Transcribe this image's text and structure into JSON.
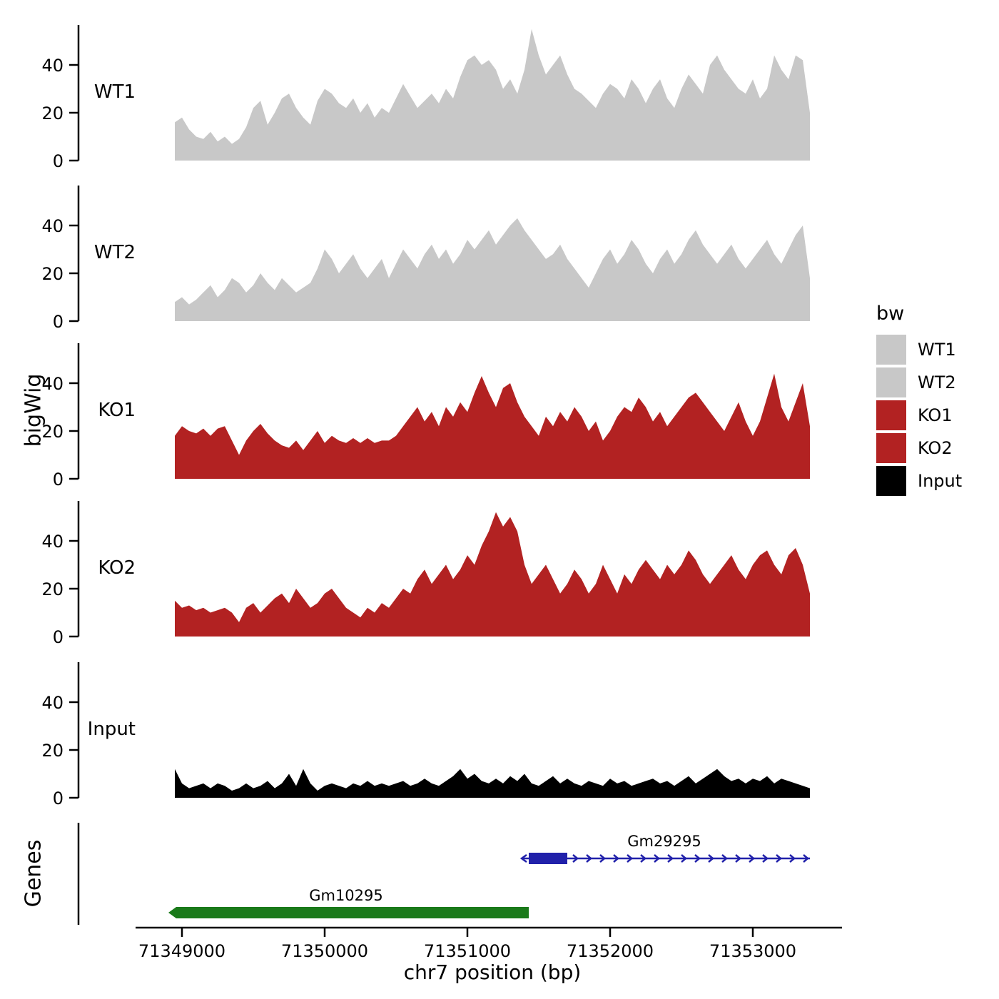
{
  "figure": {
    "y_axis_label": "bigWig",
    "genes_axis_label": "Genes",
    "x_axis_label": "chr7 position (bp)"
  },
  "legend": {
    "title": "bw",
    "items": [
      {
        "label": "WT1",
        "color": "#C8C8C8"
      },
      {
        "label": "WT2",
        "color": "#C8C8C8"
      },
      {
        "label": "KO1",
        "color": "#B22222"
      },
      {
        "label": "KO2",
        "color": "#B22222"
      },
      {
        "label": "Input",
        "color": "#000000"
      }
    ]
  },
  "chart_data": {
    "type": "area",
    "title": "",
    "xlabel": "chr7 position (bp)",
    "ylabel": "bigWig",
    "x_start": 71348950,
    "x_step": 50,
    "x_ticks": [
      71349000,
      71350000,
      71351000,
      71352000,
      71353000
    ],
    "y_ticks": [
      0,
      20,
      40
    ],
    "ylim": [
      0,
      57
    ],
    "grid": false,
    "legend_position": "right",
    "tracks": [
      {
        "name": "WT1",
        "color": "#C8C8C8",
        "values": [
          16,
          18,
          13,
          10,
          9,
          12,
          8,
          10,
          7,
          9,
          14,
          22,
          25,
          15,
          20,
          26,
          28,
          22,
          18,
          15,
          25,
          30,
          28,
          24,
          22,
          26,
          20,
          24,
          18,
          22,
          20,
          26,
          32,
          27,
          22,
          25,
          28,
          24,
          30,
          26,
          35,
          42,
          44,
          40,
          42,
          38,
          30,
          34,
          28,
          38,
          55,
          44,
          36,
          40,
          44,
          36,
          30,
          28,
          25,
          22,
          28,
          32,
          30,
          26,
          34,
          30,
          24,
          30,
          34,
          26,
          22,
          30,
          36,
          32,
          28,
          40,
          44,
          38,
          34,
          30,
          28,
          34,
          26,
          30,
          44,
          38,
          34,
          44,
          42,
          20
        ]
      },
      {
        "name": "WT2",
        "color": "#C8C8C8",
        "values": [
          8,
          10,
          7,
          9,
          12,
          15,
          10,
          13,
          18,
          16,
          12,
          15,
          20,
          16,
          13,
          18,
          15,
          12,
          14,
          16,
          22,
          30,
          26,
          20,
          24,
          28,
          22,
          18,
          22,
          26,
          18,
          24,
          30,
          26,
          22,
          28,
          32,
          26,
          30,
          24,
          28,
          34,
          30,
          34,
          38,
          32,
          36,
          40,
          43,
          38,
          34,
          30,
          26,
          28,
          32,
          26,
          22,
          18,
          14,
          20,
          26,
          30,
          24,
          28,
          34,
          30,
          24,
          20,
          26,
          30,
          24,
          28,
          34,
          38,
          32,
          28,
          24,
          28,
          32,
          26,
          22,
          26,
          30,
          34,
          28,
          24,
          30,
          36,
          40,
          18
        ]
      },
      {
        "name": "KO1",
        "color": "#B22222",
        "values": [
          18,
          22,
          20,
          19,
          21,
          18,
          21,
          22,
          16,
          10,
          16,
          20,
          23,
          19,
          16,
          14,
          13,
          16,
          12,
          16,
          20,
          15,
          18,
          16,
          15,
          17,
          15,
          17,
          15,
          16,
          16,
          18,
          22,
          26,
          30,
          24,
          28,
          22,
          30,
          26,
          32,
          28,
          36,
          43,
          36,
          30,
          38,
          40,
          32,
          26,
          22,
          18,
          26,
          22,
          28,
          24,
          30,
          26,
          20,
          24,
          16,
          20,
          26,
          30,
          28,
          34,
          30,
          24,
          28,
          22,
          26,
          30,
          34,
          36,
          32,
          28,
          24,
          20,
          26,
          32,
          24,
          18,
          24,
          34,
          44,
          30,
          24,
          32,
          40,
          22
        ]
      },
      {
        "name": "KO2",
        "color": "#B22222",
        "values": [
          15,
          12,
          13,
          11,
          12,
          10,
          11,
          12,
          10,
          6,
          12,
          14,
          10,
          13,
          16,
          18,
          14,
          20,
          16,
          12,
          14,
          18,
          20,
          16,
          12,
          10,
          8,
          12,
          10,
          14,
          12,
          16,
          20,
          18,
          24,
          28,
          22,
          26,
          30,
          24,
          28,
          34,
          30,
          38,
          44,
          52,
          46,
          50,
          44,
          30,
          22,
          26,
          30,
          24,
          18,
          22,
          28,
          24,
          18,
          22,
          30,
          24,
          18,
          26,
          22,
          28,
          32,
          28,
          24,
          30,
          26,
          30,
          36,
          32,
          26,
          22,
          26,
          30,
          34,
          28,
          24,
          30,
          34,
          36,
          30,
          26,
          34,
          37,
          30,
          18
        ]
      },
      {
        "name": "Input",
        "color": "#000000",
        "values": [
          12,
          6,
          4,
          5,
          6,
          4,
          6,
          5,
          3,
          4,
          6,
          4,
          5,
          7,
          4,
          6,
          10,
          5,
          12,
          6,
          3,
          5,
          6,
          5,
          4,
          6,
          5,
          7,
          5,
          6,
          5,
          6,
          7,
          5,
          6,
          8,
          6,
          5,
          7,
          9,
          12,
          8,
          10,
          7,
          6,
          8,
          6,
          9,
          7,
          10,
          6,
          5,
          7,
          9,
          6,
          8,
          6,
          5,
          7,
          6,
          5,
          8,
          6,
          7,
          5,
          6,
          7,
          8,
          6,
          7,
          5,
          7,
          9,
          6,
          8,
          10,
          12,
          9,
          7,
          8,
          6,
          8,
          7,
          9,
          6,
          8,
          7,
          6,
          5,
          4
        ]
      }
    ],
    "genes": [
      {
        "name": "Gm29295",
        "color": "#2121AA",
        "strand": "+",
        "box_start": 71351430,
        "box_end": 71351700,
        "line_start": 71351380,
        "line_end": 71353400,
        "label_bp": 71352380
      },
      {
        "name": "Gm10295",
        "color": "#1A7A1A",
        "strand": "-",
        "box_start": 71348960,
        "box_end": 71351430,
        "line_start": null,
        "line_end": null,
        "label_bp": 71350150
      }
    ]
  }
}
